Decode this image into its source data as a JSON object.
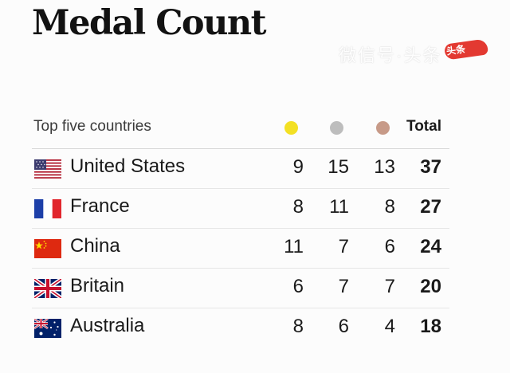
{
  "title": "Medal Count",
  "watermark": "微信号·头条",
  "watermark_tag": "头条",
  "table": {
    "header_label": "Top five countries",
    "medal_icons": [
      "gold-medal-icon",
      "silver-medal-icon",
      "bronze-medal-icon"
    ],
    "medal_colors": {
      "gold": "#f3e024",
      "silver": "#bdbdbd",
      "bronze": "#c79a88"
    },
    "total_label": "Total",
    "rows": [
      {
        "flag_icon": "us-flag-icon",
        "country": "United States",
        "gold": "9",
        "silver": "15",
        "bronze": "13",
        "total": "37"
      },
      {
        "flag_icon": "france-flag-icon",
        "country": "France",
        "gold": "8",
        "silver": "11",
        "bronze": "8",
        "total": "27"
      },
      {
        "flag_icon": "china-flag-icon",
        "country": "China",
        "gold": "11",
        "silver": "7",
        "bronze": "6",
        "total": "24"
      },
      {
        "flag_icon": "britain-flag-icon",
        "country": "Britain",
        "gold": "6",
        "silver": "7",
        "bronze": "7",
        "total": "20"
      },
      {
        "flag_icon": "australia-flag-icon",
        "country": "Australia",
        "gold": "8",
        "silver": "6",
        "bronze": "4",
        "total": "18"
      }
    ]
  }
}
